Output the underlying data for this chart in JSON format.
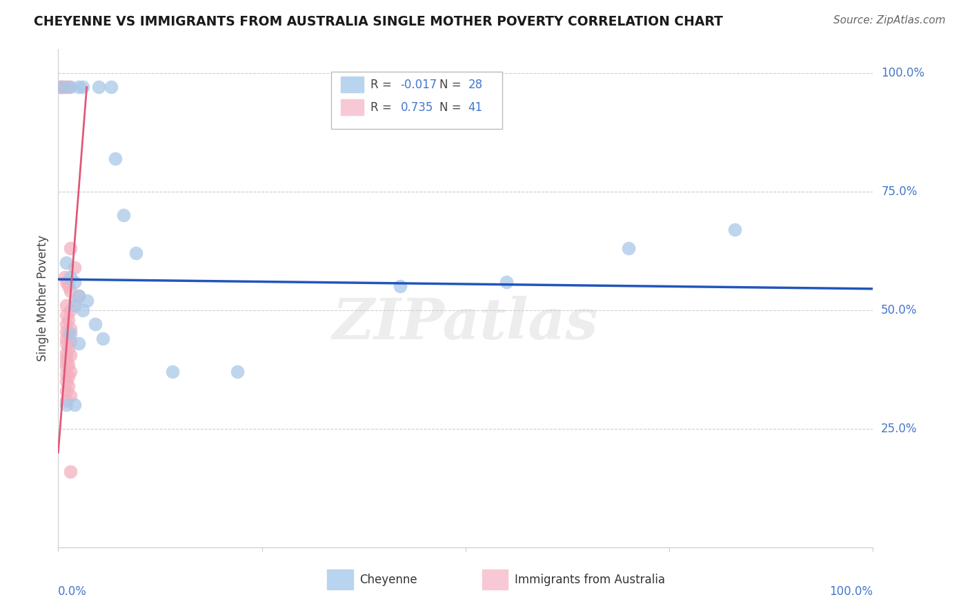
{
  "title": "CHEYENNE VS IMMIGRANTS FROM AUSTRALIA SINGLE MOTHER POVERTY CORRELATION CHART",
  "source": "Source: ZipAtlas.com",
  "ylabel": "Single Mother Poverty",
  "watermark": "ZIPatlas",
  "cheyenne_R": "-0.017",
  "cheyenne_N": "28",
  "immigrants_R": "0.735",
  "immigrants_N": "41",
  "blue_scatter_color": "#a8c8e8",
  "pink_scatter_color": "#f4b0c0",
  "blue_line_color": "#2255bb",
  "pink_line_color": "#e05878",
  "legend_blue_fill": "#b8d4ee",
  "legend_pink_fill": "#f8c8d4",
  "right_label_color": "#4477cc",
  "cheyenne_points_x": [
    0.5,
    1.5,
    2.5,
    3.0,
    5.0,
    6.5,
    7.0,
    8.0,
    9.5,
    1.0,
    1.5,
    2.0,
    2.5,
    3.5,
    2.0,
    3.0,
    4.5,
    5.5,
    1.5,
    2.5,
    14.0,
    22.0,
    42.0,
    55.0,
    70.0,
    83.0,
    1.0,
    2.0
  ],
  "cheyenne_points_y": [
    97.0,
    97.0,
    97.0,
    97.0,
    97.0,
    97.0,
    82.0,
    70.0,
    62.0,
    60.0,
    57.0,
    56.0,
    53.0,
    52.0,
    51.0,
    50.0,
    47.0,
    44.0,
    45.0,
    43.0,
    37.0,
    37.0,
    55.0,
    56.0,
    63.0,
    67.0,
    30.0,
    30.0
  ],
  "immigrants_points_x": [
    0.2,
    0.3,
    0.5,
    0.8,
    1.0,
    1.2,
    1.5,
    2.0,
    0.8,
    1.0,
    1.2,
    1.5,
    2.5,
    2.0,
    1.0,
    1.5,
    1.0,
    1.2,
    1.0,
    1.5,
    1.0,
    1.2,
    1.0,
    1.5,
    1.0,
    1.2,
    1.0,
    1.5,
    1.0,
    1.0,
    1.2,
    1.0,
    1.5,
    1.0,
    1.2,
    1.0,
    1.2,
    1.0,
    1.5,
    1.0,
    1.5
  ],
  "immigrants_points_y": [
    97.0,
    97.0,
    97.0,
    97.0,
    97.0,
    97.0,
    63.0,
    59.0,
    57.0,
    56.0,
    55.0,
    54.0,
    53.0,
    52.0,
    51.0,
    50.0,
    49.0,
    48.0,
    47.0,
    46.0,
    45.5,
    45.0,
    44.0,
    43.5,
    43.0,
    42.0,
    41.0,
    40.5,
    40.0,
    39.0,
    38.5,
    38.0,
    37.0,
    36.5,
    36.0,
    35.0,
    34.0,
    33.0,
    32.0,
    31.0,
    16.0
  ],
  "blue_line_x": [
    0,
    100
  ],
  "blue_line_y": [
    56.5,
    54.5
  ],
  "pink_line_x": [
    0,
    3.5
  ],
  "pink_line_y": [
    20,
    97
  ],
  "xlim": [
    0,
    100
  ],
  "ylim": [
    0,
    105
  ],
  "yticks": [
    0,
    25,
    50,
    75,
    100
  ],
  "ytick_labels": [
    "",
    "25.0%",
    "50.0%",
    "75.0%",
    "100.0%"
  ],
  "xtick_positions": [
    0,
    25,
    50,
    75,
    100
  ],
  "grid_color": "#cccccc",
  "spine_color": "#cccccc"
}
